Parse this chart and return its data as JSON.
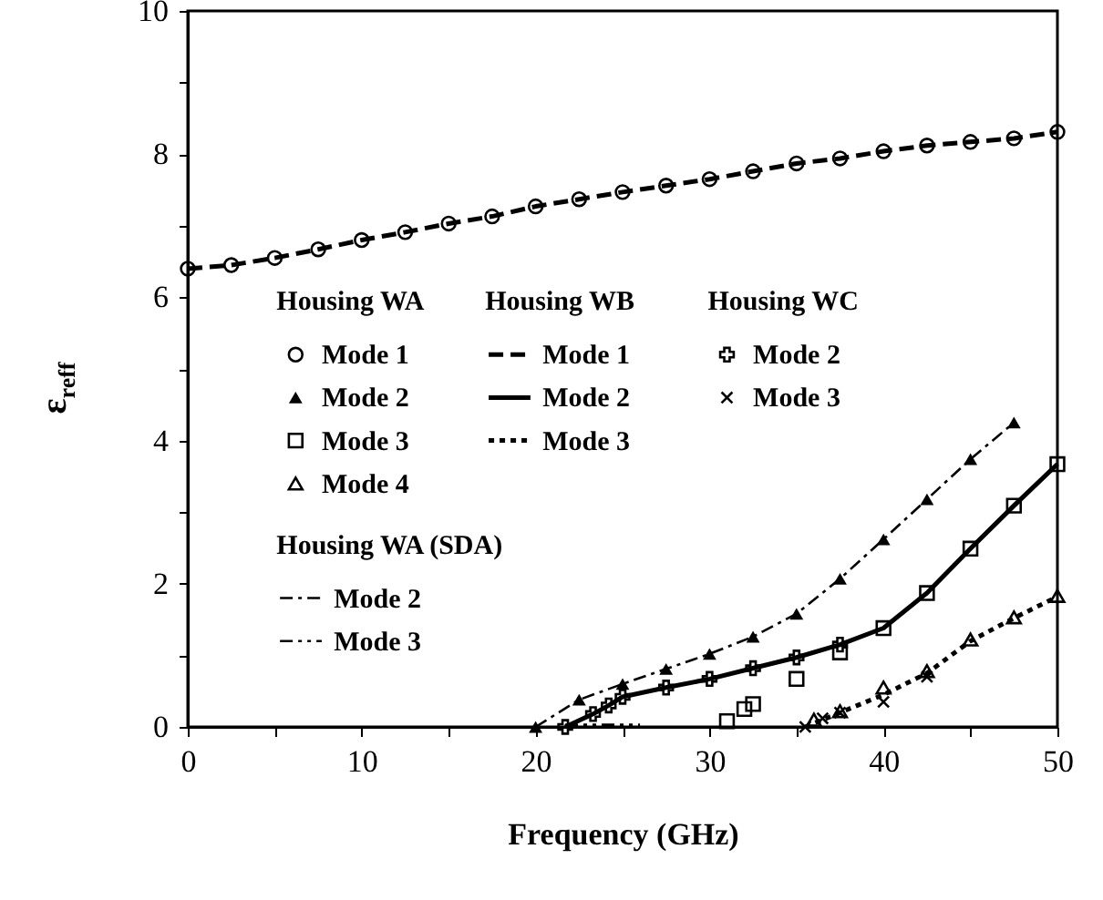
{
  "chart_data": {
    "type": "line",
    "xlabel": "Frequency  (GHz)",
    "ylabel": "ε$_{reff}$",
    "xlim": [
      0,
      50
    ],
    "ylim": [
      0,
      10
    ],
    "xticks": [
      0,
      {
        "value": 5,
        "label": null
      },
      10,
      {
        "value": 15,
        "label": null
      },
      20,
      {
        "value": 25,
        "label": null
      },
      30,
      {
        "value": 35,
        "label": null
      },
      40,
      {
        "value": 45,
        "label": null
      },
      50
    ],
    "yticks": [
      0,
      {
        "value": 1,
        "label": null
      },
      2,
      {
        "value": 3,
        "label": null
      },
      4,
      {
        "value": 5,
        "label": null
      },
      6,
      {
        "value": 7,
        "label": null
      },
      8,
      {
        "value": 9,
        "label": null
      },
      10
    ],
    "grid": false,
    "legend": "left",
    "annotations": [
      "Housing  WA",
      "Housing  WB",
      "Housing  WC",
      "Housing  WA  (SDA)"
    ],
    "series": [
      {
        "name": "Mode 1",
        "color": "#000000",
        "type": "scatter",
        "marker": "circle",
        "x": [
          0,
          2.5,
          5,
          7.5,
          10,
          12.5,
          15,
          17.5,
          20,
          22.5,
          25,
          27.5,
          30,
          32.5,
          35,
          37.5,
          40,
          42.5,
          45,
          47.5,
          50
        ],
        "values": [
          6.4,
          6.45,
          6.55,
          6.67,
          6.8,
          6.91,
          7.03,
          7.13,
          7.27,
          7.37,
          7.47,
          7.56,
          7.65,
          7.76,
          7.87,
          7.94,
          8.04,
          8.12,
          8.17,
          8.22,
          8.31
        ]
      },
      {
        "name": "Mode 2",
        "color": "#000000",
        "type": "scatter",
        "marker": "triangle",
        "x": [
          20,
          22.5,
          25,
          27.5,
          30,
          32.5,
          35,
          37.5,
          40,
          42.5,
          45,
          47.5
        ],
        "values": [
          0,
          0.38,
          0.6,
          0.81,
          1.02,
          1.26,
          1.58,
          2.07,
          2.62,
          3.18,
          3.74,
          4.25
        ]
      },
      {
        "name": "Mode 3",
        "color": "#000000",
        "type": "scatter",
        "marker": "square",
        "x": [
          31,
          32,
          32.5,
          35,
          37.5,
          40,
          42.5,
          45,
          47.5,
          50
        ],
        "values": [
          0.08,
          0.25,
          0.32,
          0.67,
          1.04,
          1.38,
          1.87,
          2.49,
          3.09,
          3.67
        ]
      },
      {
        "name": "Mode 4",
        "color": "#000000",
        "type": "scatter",
        "marker": "triangle-open",
        "x": [
          36,
          37.5,
          40,
          42.5,
          45,
          47.5,
          50
        ],
        "values": [
          0.1,
          0.22,
          0.55,
          0.78,
          1.22,
          1.53,
          1.83
        ]
      },
      {
        "name": "Mode 1",
        "color": "#000000",
        "type": "line",
        "line_style": "dashed",
        "x": [
          0,
          2.5,
          5,
          7.5,
          10,
          12.5,
          15,
          17.5,
          20,
          22.5,
          25,
          27.5,
          30,
          32.5,
          35,
          37.5,
          40,
          42.5,
          45,
          47.5,
          50
        ],
        "values": [
          6.4,
          6.45,
          6.55,
          6.67,
          6.8,
          6.91,
          7.03,
          7.13,
          7.27,
          7.37,
          7.47,
          7.56,
          7.65,
          7.76,
          7.87,
          7.94,
          8.04,
          8.12,
          8.17,
          8.22,
          8.31
        ]
      },
      {
        "name": "Mode 2",
        "color": "#000000",
        "type": "line",
        "line_style": "solid",
        "x": [
          21.7,
          23.3,
          24.2,
          25,
          27.5,
          30,
          32.5,
          35,
          37.5,
          40,
          42.5,
          45,
          47.5,
          50
        ],
        "values": [
          0,
          0.18,
          0.3,
          0.42,
          0.55,
          0.67,
          0.82,
          0.97,
          1.15,
          1.38,
          1.87,
          2.49,
          3.09,
          3.67
        ]
      },
      {
        "name": "Mode 3",
        "color": "#000000",
        "type": "line",
        "line_style": "dotted",
        "x": [
          35.5,
          37.5,
          40,
          42.5,
          45,
          47.5,
          50
        ],
        "values": [
          0,
          0.2,
          0.45,
          0.75,
          1.2,
          1.52,
          1.82
        ]
      },
      {
        "name": "Mode 2",
        "color": "#000000",
        "type": "scatter",
        "marker": "cross",
        "x": [
          21.7,
          23.3,
          24.2,
          25,
          27.5,
          30,
          32.5,
          35,
          37.5
        ],
        "values": [
          0,
          0.18,
          0.3,
          0.42,
          0.55,
          0.67,
          0.82,
          0.97,
          1.15
        ]
      },
      {
        "name": "Mode 3",
        "color": "#000000",
        "type": "scatter",
        "marker": "x",
        "x": [
          35.5,
          36.5,
          37.5,
          40,
          42.5
        ],
        "values": [
          0,
          0.12,
          0.2,
          0.35,
          0.7
        ]
      },
      {
        "name": "Mode 2",
        "color": "#000000",
        "type": "line",
        "line_style": "dashdot",
        "x": [
          20,
          22.5,
          25,
          27.5,
          30,
          32.5,
          35,
          37.5,
          40,
          42.5,
          45,
          47.5
        ],
        "values": [
          0,
          0.38,
          0.6,
          0.81,
          1.02,
          1.26,
          1.58,
          2.07,
          2.62,
          3.18,
          3.74,
          4.25
        ]
      },
      {
        "name": "Mode 3",
        "color": "#000000",
        "type": "line",
        "line_style": "dashdotdot",
        "x": [
          21.7,
          26
        ],
        "values": [
          0.03,
          0.03
        ]
      }
    ]
  }
}
